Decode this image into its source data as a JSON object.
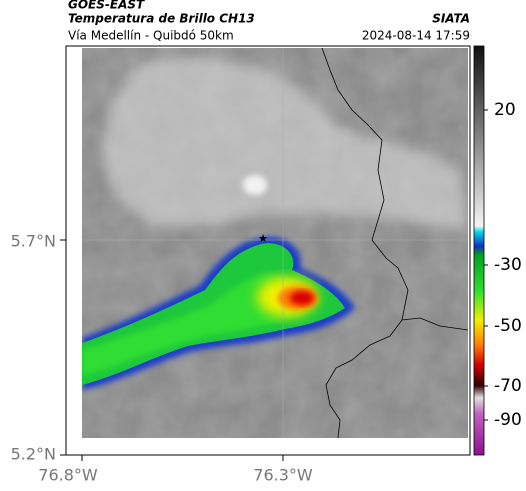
{
  "header": {
    "title": "GOES-EAST",
    "subtitle": "Temperatura de Brillo CH13",
    "region": "Vía Medellín - Quibdó 50km",
    "source": "SIATA",
    "timestamp": "2024-08-14 17:59"
  },
  "axes": {
    "lat_labels": [
      "5.7°N",
      "5.2°N"
    ],
    "lon_labels": [
      "76.8°W",
      "76.3°W"
    ]
  },
  "colorbar": {
    "ticks": [
      20,
      -30,
      -50,
      -70,
      -90
    ]
  }
}
